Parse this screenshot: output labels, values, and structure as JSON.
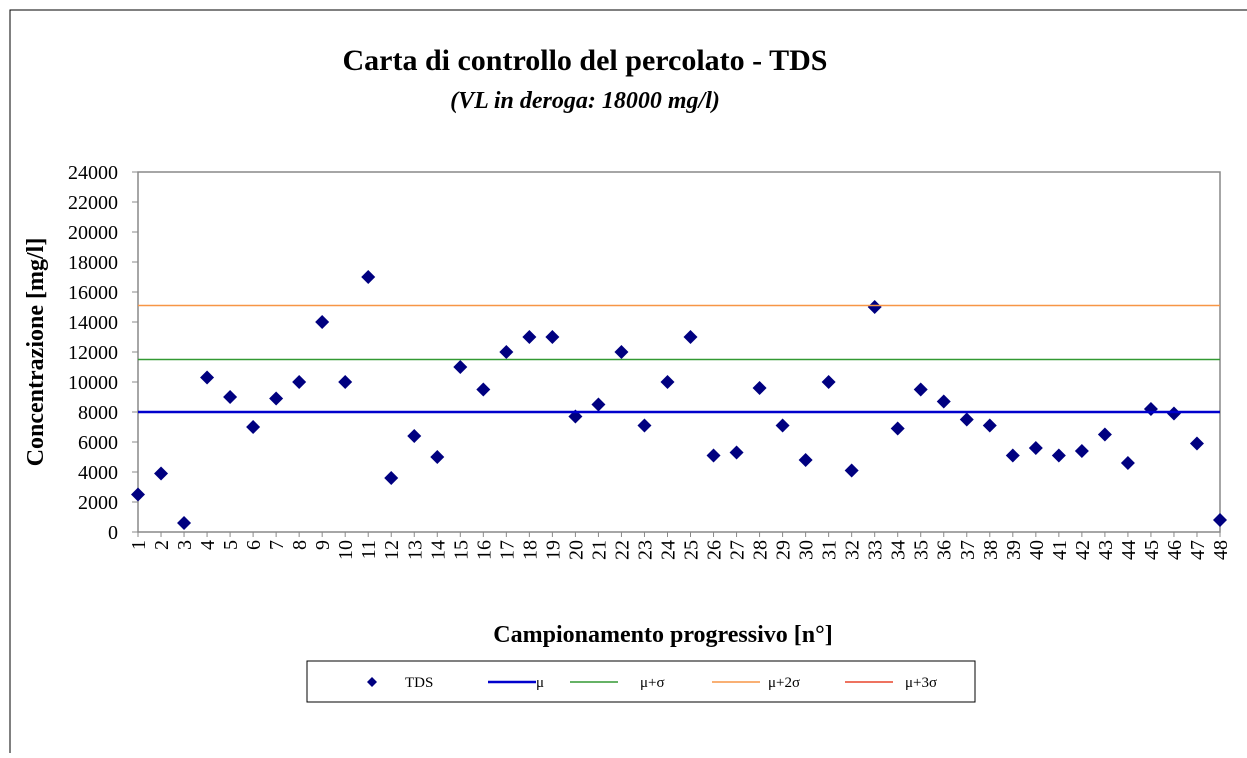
{
  "chart_data": {
    "type": "control-chart",
    "title": "Carta di controllo del percolato - TDS",
    "subtitle": "(VL in deroga: 18000 mg/l)",
    "x_label": "Campionamento  progressivo [n°]",
    "y_label": "Concentrazione  [mg/l]",
    "categories": [
      "1",
      "2",
      "3",
      "4",
      "5",
      "6",
      "7",
      "8",
      "9",
      "10",
      "11",
      "12",
      "13",
      "14",
      "15",
      "16",
      "17",
      "18",
      "19",
      "20",
      "21",
      "22",
      "23",
      "24",
      "25",
      "26",
      "27",
      "28",
      "29",
      "30",
      "31",
      "32",
      "33",
      "34",
      "35",
      "36",
      "37",
      "38",
      "39",
      "40",
      "41",
      "42",
      "43",
      "44",
      "45",
      "46",
      "47",
      "48"
    ],
    "series": [
      {
        "name": "TDS",
        "color": "#000080",
        "values": [
          2500,
          3900,
          600,
          10300,
          9000,
          7000,
          8900,
          10000,
          14000,
          10000,
          17000,
          3600,
          6400,
          5000,
          11000,
          9500,
          12000,
          13000,
          13000,
          7700,
          8500,
          12000,
          7100,
          10000,
          13000,
          5100,
          5300,
          9600,
          7100,
          4800,
          10000,
          4100,
          15000,
          6900,
          9500,
          8700,
          7500,
          7100,
          5100,
          5600,
          5100,
          5400,
          6500,
          4600,
          8200,
          7900,
          5900,
          800
        ]
      },
      {
        "name": "μ",
        "color": "#0000cc",
        "value": 8000
      },
      {
        "name": "μ+σ",
        "color": "#339933",
        "value": 11500
      },
      {
        "name": "μ+2σ",
        "color": "#f79646",
        "value": 15100
      },
      {
        "name": "μ+3σ",
        "color": "#e8452c",
        "value": null
      }
    ],
    "ylim": [
      0,
      24000
    ],
    "yticks": [
      0,
      2000,
      4000,
      6000,
      8000,
      10000,
      12000,
      14000,
      16000,
      18000,
      20000,
      22000,
      24000
    ]
  }
}
